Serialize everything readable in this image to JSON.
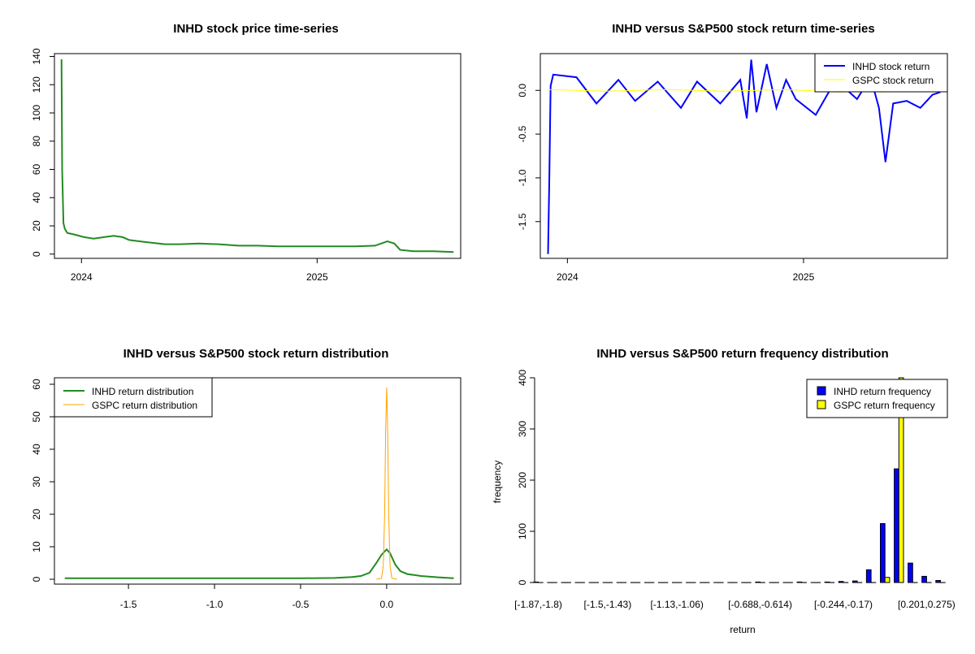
{
  "chart_data": [
    {
      "type": "line",
      "title": "INHD stock price time-series",
      "xlabel": "",
      "ylabel": "",
      "xlim": [
        "2023-11-20",
        "2025-08-12"
      ],
      "ylim": [
        -3,
        142
      ],
      "x_ticks": [
        "2024",
        "2025"
      ],
      "y_ticks": [
        "0",
        "20",
        "40",
        "60",
        "80",
        "100",
        "120",
        "140"
      ],
      "color": "#228b22",
      "series": [
        {
          "values": [
            [
              "2023-12-01",
              138
            ],
            [
              "2023-12-02",
              60
            ],
            [
              "2023-12-04",
              22
            ],
            [
              "2023-12-06",
              18
            ],
            [
              "2023-12-10",
              15
            ],
            [
              "2023-12-20",
              14
            ],
            [
              "2024-01-05",
              12
            ],
            [
              "2024-01-20",
              11
            ],
            [
              "2024-02-05",
              12
            ],
            [
              "2024-02-20",
              13
            ],
            [
              "2024-03-05",
              12
            ],
            [
              "2024-03-15",
              10
            ],
            [
              "2024-04-01",
              9
            ],
            [
              "2024-04-20",
              8
            ],
            [
              "2024-05-10",
              7
            ],
            [
              "2024-06-01",
              7
            ],
            [
              "2024-07-01",
              7.5
            ],
            [
              "2024-08-01",
              7
            ],
            [
              "2024-09-01",
              6
            ],
            [
              "2024-10-01",
              6
            ],
            [
              "2024-11-01",
              5.5
            ],
            [
              "2024-12-01",
              5.5
            ],
            [
              "2025-01-01",
              5.5
            ],
            [
              "2025-02-01",
              5.5
            ],
            [
              "2025-03-01",
              5.5
            ],
            [
              "2025-04-01",
              6
            ],
            [
              "2025-04-20",
              9
            ],
            [
              "2025-05-01",
              7.5
            ],
            [
              "2025-05-10",
              3
            ],
            [
              "2025-06-01",
              2
            ],
            [
              "2025-07-01",
              2
            ],
            [
              "2025-08-01",
              1.5
            ]
          ]
        }
      ]
    },
    {
      "type": "line",
      "title": "INHD versus S&P500 stock return time-series",
      "xlabel": "",
      "ylabel": "",
      "xlim": [
        "2023-11-20",
        "2025-08-12"
      ],
      "ylim": [
        -1.92,
        0.42
      ],
      "x_ticks": [
        "2024",
        "2025"
      ],
      "y_ticks": [
        "-1.5",
        "-1.0",
        "-0.5",
        "0.0"
      ],
      "legend": "top-right",
      "series": [
        {
          "name": "INHD stock return",
          "color": "#0000ff",
          "values": [
            [
              "2023-12-02",
              -1.87
            ],
            [
              "2023-12-04",
              -1.0
            ],
            [
              "2023-12-06",
              0.05
            ],
            [
              "2023-12-10",
              0.18
            ],
            [
              "2024-01-15",
              0.15
            ],
            [
              "2024-02-15",
              -0.15
            ],
            [
              "2024-03-20",
              0.12
            ],
            [
              "2024-04-15",
              -0.12
            ],
            [
              "2024-05-20",
              0.1
            ],
            [
              "2024-06-25",
              -0.2
            ],
            [
              "2024-07-20",
              0.1
            ],
            [
              "2024-08-25",
              -0.15
            ],
            [
              "2024-09-25",
              0.12
            ],
            [
              "2024-10-05",
              -0.32
            ],
            [
              "2024-10-12",
              0.35
            ],
            [
              "2024-10-20",
              -0.25
            ],
            [
              "2024-11-05",
              0.3
            ],
            [
              "2024-11-20",
              -0.2
            ],
            [
              "2024-12-05",
              0.12
            ],
            [
              "2024-12-20",
              -0.1
            ],
            [
              "2025-01-20",
              -0.28
            ],
            [
              "2025-02-20",
              0.12
            ],
            [
              "2025-03-25",
              -0.1
            ],
            [
              "2025-04-15",
              0.15
            ],
            [
              "2025-04-28",
              -0.2
            ],
            [
              "2025-05-08",
              -0.82
            ],
            [
              "2025-05-20",
              -0.15
            ],
            [
              "2025-06-10",
              -0.12
            ],
            [
              "2025-07-01",
              -0.2
            ],
            [
              "2025-07-20",
              -0.05
            ],
            [
              "2025-08-01",
              -0.02
            ]
          ]
        },
        {
          "name": "GSPC stock return",
          "color": "#ffff00",
          "values": [
            [
              "2023-12-02",
              0.01
            ],
            [
              "2024-03-01",
              -0.01
            ],
            [
              "2024-06-01",
              0.01
            ],
            [
              "2024-09-01",
              -0.01
            ],
            [
              "2024-12-01",
              0.01
            ],
            [
              "2025-03-01",
              -0.02
            ],
            [
              "2025-04-10",
              0.03
            ],
            [
              "2025-05-01",
              -0.02
            ],
            [
              "2025-06-01",
              0.01
            ],
            [
              "2025-08-01",
              0.0
            ]
          ]
        }
      ]
    },
    {
      "type": "line",
      "title": "INHD versus S&P500 stock return distribution",
      "xlabel": "",
      "ylabel": "",
      "xlim": [
        -1.93,
        0.43
      ],
      "ylim": [
        -1.5,
        62
      ],
      "x_ticks": [
        "-1.5",
        "-1.0",
        "-0.5",
        "0.0"
      ],
      "y_ticks": [
        "0",
        "10",
        "20",
        "30",
        "40",
        "50",
        "60"
      ],
      "legend": "top-left",
      "series": [
        {
          "name": "INHD return distribution",
          "color": "#228b22",
          "values": [
            [
              -1.87,
              0.3
            ],
            [
              -1.5,
              0.3
            ],
            [
              -1.0,
              0.3
            ],
            [
              -0.5,
              0.3
            ],
            [
              -0.3,
              0.4
            ],
            [
              -0.2,
              0.7
            ],
            [
              -0.15,
              1.0
            ],
            [
              -0.1,
              2.0
            ],
            [
              -0.06,
              5.0
            ],
            [
              -0.03,
              7.5
            ],
            [
              0.0,
              9.2
            ],
            [
              0.02,
              8.0
            ],
            [
              0.05,
              4.5
            ],
            [
              0.08,
              2.5
            ],
            [
              0.12,
              1.6
            ],
            [
              0.2,
              1.0
            ],
            [
              0.3,
              0.6
            ],
            [
              0.39,
              0.3
            ]
          ]
        },
        {
          "name": "GSPC return distribution",
          "color": "#ffa500",
          "values": [
            [
              -0.06,
              0.0
            ],
            [
              -0.03,
              0.3
            ],
            [
              -0.02,
              4.0
            ],
            [
              -0.012,
              20.0
            ],
            [
              -0.006,
              45.0
            ],
            [
              0.0,
              59.0
            ],
            [
              0.006,
              45.0
            ],
            [
              0.012,
              20.0
            ],
            [
              0.02,
              4.0
            ],
            [
              0.03,
              0.3
            ],
            [
              0.06,
              0.0
            ]
          ]
        }
      ]
    },
    {
      "type": "bar",
      "title": "INHD versus S&P500 return frequency distribution",
      "xlabel": "return",
      "ylabel": "frequency",
      "ylim": [
        0,
        400
      ],
      "y_ticks": [
        "0",
        "100",
        "200",
        "300",
        "400"
      ],
      "legend": "top-right",
      "tick_labels": [
        "[-1.87,-1.8)",
        "[-1.5,-1.43)",
        "[-1.13,-1.06)",
        "[-0.688,-0.614)",
        "[-0.244,-0.17)",
        "[0.201,0.275)"
      ],
      "categories": [
        "[-1.87,-1.8)",
        "[-1.8,-1.72)",
        "[-1.72,-1.65)",
        "[-1.65,-1.58)",
        "[-1.58,-1.5)",
        "[-1.5,-1.43)",
        "[-1.43,-1.36)",
        "[-1.36,-1.28)",
        "[-1.28,-1.21)",
        "[-1.21,-1.13)",
        "[-1.13,-1.06)",
        "[-1.06,-0.984)",
        "[-0.984,-0.91)",
        "[-0.91,-0.836)",
        "[-0.836,-0.762)",
        "[-0.762,-0.688)",
        "[-0.688,-0.614)",
        "[-0.614,-0.54)",
        "[-0.54,-0.466)",
        "[-0.466,-0.392)",
        "[-0.392,-0.318)",
        "[-0.318,-0.244)",
        "[-0.244,-0.17)",
        "[-0.17,-0.096)",
        "[-0.096,-0.022)",
        "[-0.022,0.0524)",
        "[0.0524,0.127)",
        "[0.127,0.201)",
        "[0.201,0.275)",
        "[0.275,0.349)"
      ],
      "series": [
        {
          "name": "INHD return frequency",
          "color": "#0000ff",
          "values": [
            1,
            0,
            0,
            0,
            0,
            0,
            0,
            0,
            0,
            0,
            0,
            0,
            0,
            0,
            0,
            0,
            1,
            0,
            0,
            1,
            0,
            1,
            2,
            3,
            25,
            115,
            222,
            38,
            12,
            4
          ]
        },
        {
          "name": "GSPC return frequency",
          "color": "#ffff00",
          "values": [
            0,
            0,
            0,
            0,
            0,
            0,
            0,
            0,
            0,
            0,
            0,
            0,
            0,
            0,
            0,
            0,
            0,
            0,
            0,
            0,
            0,
            0,
            0,
            0,
            0,
            10,
            400,
            0,
            0,
            0
          ]
        }
      ]
    }
  ]
}
